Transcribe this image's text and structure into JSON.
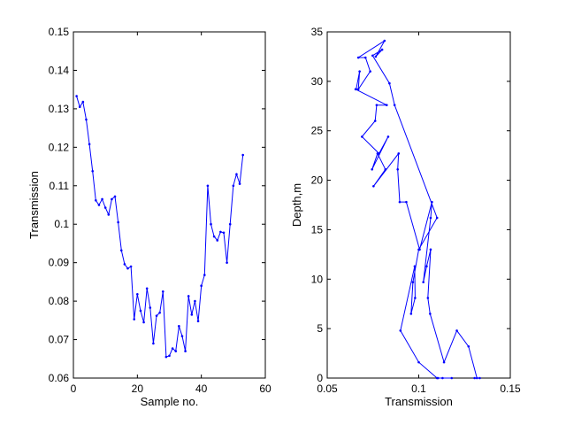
{
  "chart_data": [
    {
      "type": "line",
      "title": "",
      "xlabel": "Sample no.",
      "ylabel": "Transmission",
      "xlim": [
        0,
        60
      ],
      "ylim": [
        0.06,
        0.15
      ],
      "xticks": [
        0,
        20,
        40,
        60
      ],
      "xtick_labels": [
        "0",
        "20",
        "40",
        "60"
      ],
      "yticks": [
        0.06,
        0.07,
        0.08,
        0.09,
        0.1,
        0.11,
        0.12,
        0.13,
        0.14,
        0.15
      ],
      "ytick_labels": [
        "0.06",
        "0.07",
        "0.08",
        "0.09",
        "0.1",
        "0.11",
        "0.12",
        "0.13",
        "0.14",
        "0.15"
      ],
      "grid": false,
      "color": "#0000ff",
      "series": [
        {
          "x": [
            1,
            2,
            3,
            4,
            5,
            6,
            7,
            8,
            9,
            10,
            11,
            12,
            13,
            14,
            15,
            16,
            17,
            18,
            19,
            20,
            21,
            22,
            23,
            24,
            25,
            26,
            27,
            28,
            29,
            30,
            31,
            32,
            33,
            34,
            35,
            36,
            37,
            38,
            39,
            40,
            41,
            42,
            43,
            44,
            45,
            46,
            47,
            48,
            49,
            50,
            51,
            52,
            53
          ],
          "y": [
            0.1333,
            0.1305,
            0.1318,
            0.1272,
            0.1208,
            0.1138,
            0.1062,
            0.105,
            0.1065,
            0.1043,
            0.1025,
            0.1065,
            0.1072,
            0.1005,
            0.0932,
            0.0896,
            0.0885,
            0.089,
            0.0753,
            0.0818,
            0.0775,
            0.0745,
            0.0833,
            0.0783,
            0.069,
            0.0762,
            0.077,
            0.0825,
            0.0655,
            0.0658,
            0.0677,
            0.067,
            0.0735,
            0.0709,
            0.067,
            0.0813,
            0.0765,
            0.08,
            0.0748,
            0.084,
            0.0868,
            0.11,
            0.1,
            0.0968,
            0.0958,
            0.098,
            0.0978,
            0.09,
            0.1,
            0.11,
            0.113,
            0.1105,
            0.118
          ]
        }
      ]
    },
    {
      "type": "line",
      "title": "",
      "xlabel": "Transmission",
      "ylabel": "Depth,m",
      "xlim": [
        0.05,
        0.15
      ],
      "ylim": [
        0,
        35
      ],
      "xticks": [
        0.05,
        0.1,
        0.15
      ],
      "xtick_labels": [
        "0.05",
        "0.1",
        "0.15"
      ],
      "yticks": [
        0,
        5,
        10,
        15,
        20,
        25,
        30,
        35
      ],
      "ytick_labels": [
        "0",
        "5",
        "10",
        "15",
        "20",
        "25",
        "30",
        "35"
      ],
      "grid": false,
      "color": "#0000ff",
      "series": [
        {
          "x": [
            0.1333,
            0.1305,
            0.1318,
            0.1272,
            0.1208,
            0.1138,
            0.1062,
            0.105,
            0.1065,
            0.1043,
            0.1025,
            0.1065,
            0.1072,
            0.1005,
            0.0932,
            0.0896,
            0.0885,
            0.089,
            0.0753,
            0.0818,
            0.0775,
            0.0745,
            0.0833,
            0.0783,
            0.069,
            0.0762,
            0.077,
            0.0825,
            0.0655,
            0.0658,
            0.0677,
            0.067,
            0.0735,
            0.0709,
            0.067,
            0.0813,
            0.0765,
            0.08,
            0.0748,
            0.084,
            0.0868,
            0.11,
            0.1,
            0.0968,
            0.0958,
            0.098,
            0.0978,
            0.09,
            0.1,
            0.11,
            0.113,
            0.1105,
            0.118
          ],
          "y": [
            0,
            0,
            0,
            3.2,
            4.8,
            1.6,
            6.5,
            8.1,
            13.0,
            11.3,
            9.7,
            16.2,
            17.8,
            13.0,
            17.8,
            17.8,
            21.1,
            22.7,
            19.4,
            21.1,
            22.7,
            21.1,
            24.4,
            22.7,
            24.4,
            26.0,
            27.6,
            27.6,
            29.2,
            29.2,
            31.0,
            29.2,
            31.0,
            32.4,
            32.4,
            34.1,
            32.5,
            33.2,
            32.6,
            29.8,
            27.6,
            16.2,
            13.0,
            9.7,
            6.5,
            8.1,
            11.3,
            4.8,
            1.6,
            0,
            0,
            0,
            0
          ]
        }
      ]
    }
  ]
}
